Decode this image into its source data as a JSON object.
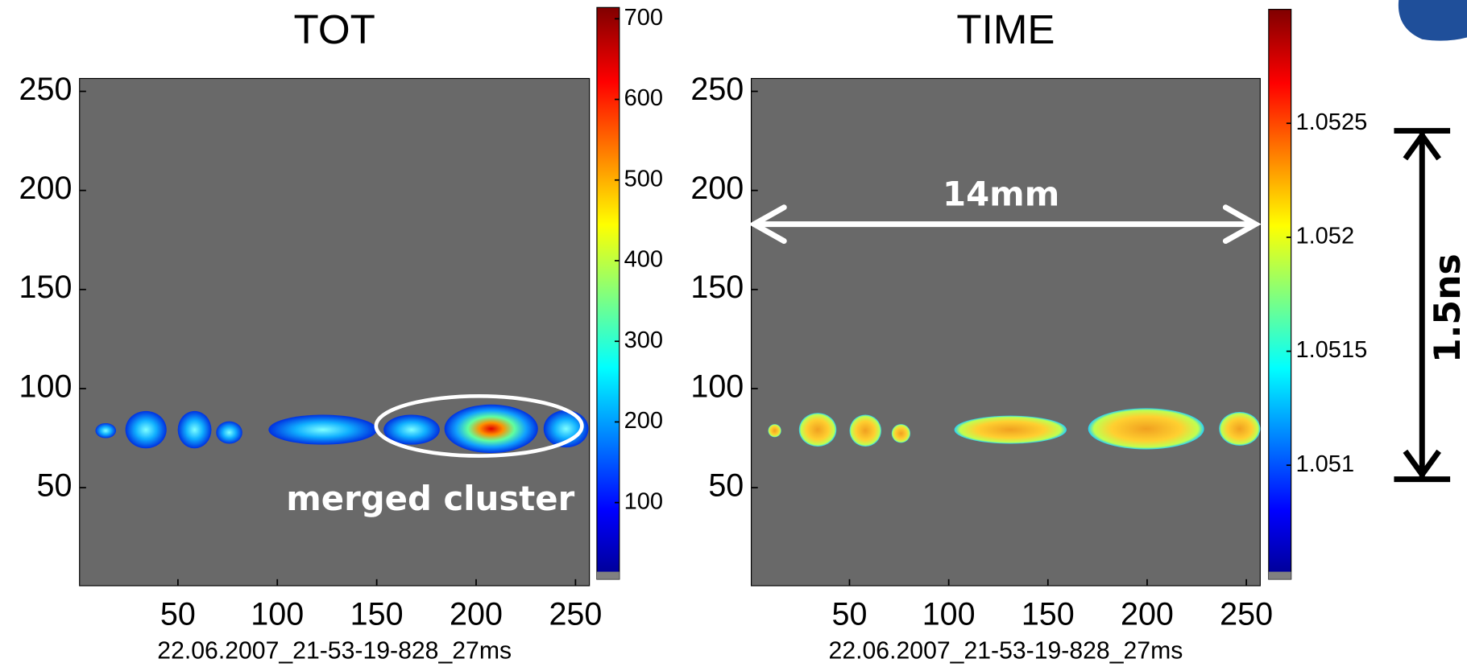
{
  "chart_data": [
    {
      "type": "heatmap",
      "title": "TOT",
      "xlabel": "22.06.2007_21-53-19-828_27ms",
      "xlim": [
        0.5,
        257
      ],
      "ylim": [
        0.5,
        256.5
      ],
      "xticks": [
        50,
        100,
        150,
        200,
        250
      ],
      "yticks": [
        50,
        100,
        150,
        200,
        250
      ],
      "colorbar": {
        "lim": [
          5,
          714
        ],
        "ticks": [
          100,
          200,
          300,
          400,
          500,
          600,
          700
        ]
      },
      "annotations": [
        "merged cluster"
      ]
    },
    {
      "type": "heatmap",
      "title": "TIME",
      "xlabel": "22.06.2007_21-53-19-828_27ms",
      "xlim": [
        0.5,
        257
      ],
      "ylim": [
        0.5,
        256.5
      ],
      "xticks": [
        50,
        100,
        150,
        200,
        250
      ],
      "yticks": [
        50,
        100,
        150,
        200,
        250
      ],
      "colorbar": {
        "lim": [
          1.0505,
          1.053
        ],
        "ticks": [
          1.051,
          1.0515,
          1.052,
          1.0525
        ]
      },
      "annotations": [
        "14mm",
        "1.5ns"
      ]
    }
  ]
}
